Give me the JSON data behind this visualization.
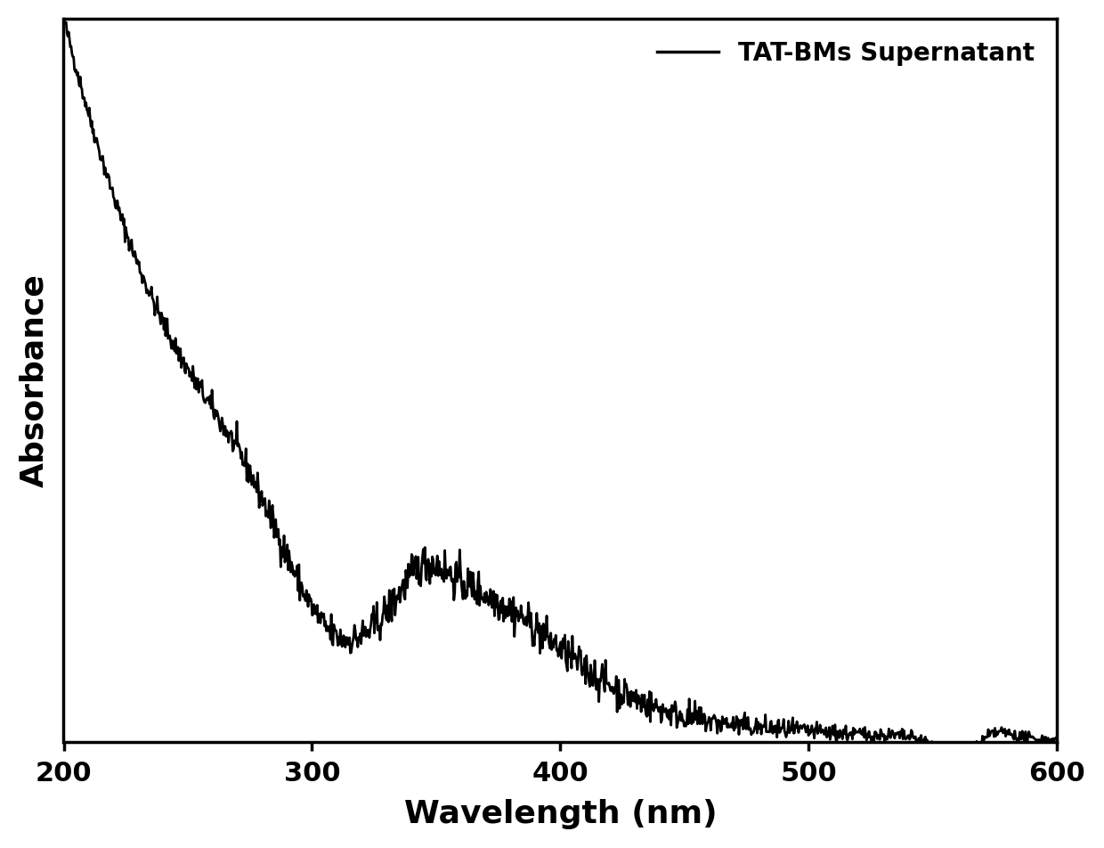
{
  "xlabel": "Wavelength (nm)",
  "ylabel": "Absorbance",
  "legend_label": "TAT-BMs Supernatant",
  "line_color": "#000000",
  "line_width": 2.0,
  "background_color": "#ffffff",
  "xlim": [
    200,
    600
  ],
  "ylim_min": 0.0,
  "ylim_max": 1.15,
  "xlabel_fontsize": 26,
  "ylabel_fontsize": 26,
  "tick_fontsize": 22,
  "legend_fontsize": 20,
  "spine_linewidth": 2.5,
  "xticks": [
    200,
    300,
    400,
    500,
    600
  ]
}
